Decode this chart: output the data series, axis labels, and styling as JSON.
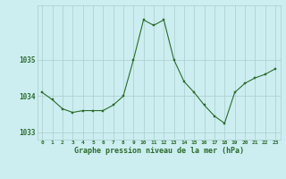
{
  "hours": [
    0,
    1,
    2,
    3,
    4,
    5,
    6,
    7,
    8,
    9,
    10,
    11,
    12,
    13,
    14,
    15,
    16,
    17,
    18,
    19,
    20,
    21,
    22,
    23
  ],
  "pressure": [
    1034.1,
    1033.9,
    1033.65,
    1033.55,
    1033.6,
    1033.6,
    1033.6,
    1033.75,
    1034.0,
    1035.0,
    1036.1,
    1035.95,
    1036.1,
    1035.0,
    1034.4,
    1034.1,
    1033.75,
    1033.45,
    1033.25,
    1034.1,
    1034.35,
    1034.5,
    1034.6,
    1034.75
  ],
  "line_color": "#2d6a2d",
  "marker_color": "#2d6a2d",
  "bg_color": "#cceef0",
  "grid_color": "#aacccc",
  "xlabel": "Graphe pression niveau de la mer (hPa)",
  "xlabel_color": "#2d6a2d",
  "tick_color": "#2d6a2d",
  "ylim": [
    1032.8,
    1036.5
  ],
  "yticks": [
    1033,
    1034,
    1035
  ],
  "figsize": [
    3.2,
    2.0
  ],
  "dpi": 100
}
